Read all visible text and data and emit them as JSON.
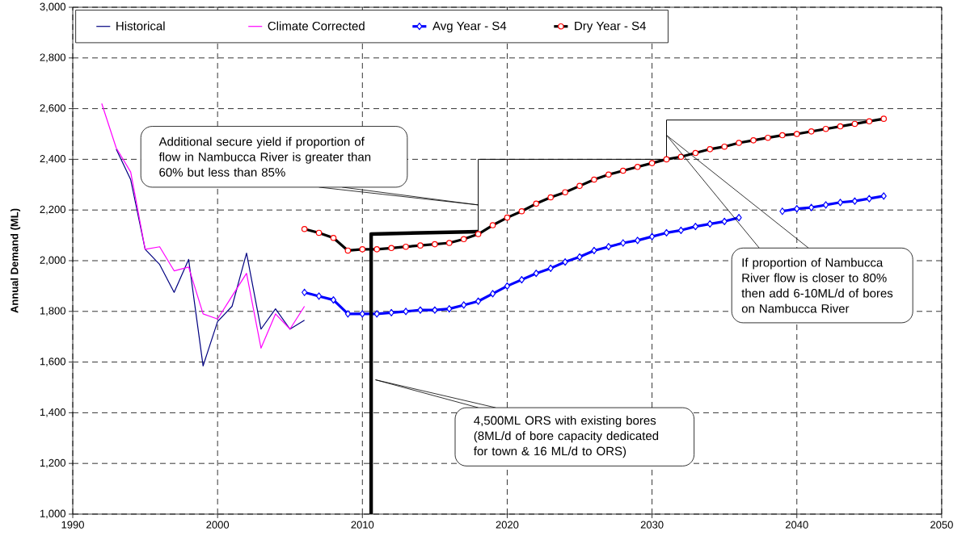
{
  "chart_data": {
    "type": "line",
    "ylabel": "Annual Demand (ML)",
    "xlim": [
      1990,
      2050
    ],
    "ylim": [
      1000,
      3000
    ],
    "xticks": [
      1990,
      2000,
      2010,
      2020,
      2030,
      2040,
      2050
    ],
    "yticks": [
      {
        "value": 1000,
        "label": "1,000"
      },
      {
        "value": 1200,
        "label": "1,200"
      },
      {
        "value": 1400,
        "label": "1,400"
      },
      {
        "value": 1600,
        "label": "1,600"
      },
      {
        "value": 1800,
        "label": "1,800"
      },
      {
        "value": 2000,
        "label": "2,000"
      },
      {
        "value": 2200,
        "label": "2,200"
      },
      {
        "value": 2400,
        "label": "2,400"
      },
      {
        "value": 2600,
        "label": "2,600"
      },
      {
        "value": 2800,
        "label": "2,800"
      },
      {
        "value": 3000,
        "label": "3,000"
      }
    ],
    "grid": true,
    "legend": "top",
    "series": [
      {
        "name": "Historical",
        "color": "#000080",
        "x": [
          1993,
          1994,
          1995,
          1996,
          1997,
          1998,
          1999,
          2000,
          2001,
          2002,
          2003,
          2004,
          2005,
          2006
        ],
        "values": [
          2440,
          2320,
          2045,
          1985,
          1875,
          2005,
          1585,
          1760,
          1820,
          2030,
          1730,
          1810,
          1730,
          1765
        ]
      },
      {
        "name": "Climate Corrected",
        "color": "#ff00ff",
        "x": [
          1992,
          1993,
          1994,
          1995,
          1996,
          1997,
          1998,
          1999,
          2000,
          2001,
          2002,
          2003,
          2004,
          2005,
          2006
        ],
        "values": [
          2620,
          2445,
          2350,
          2045,
          2055,
          1960,
          1975,
          1790,
          1770,
          1860,
          1950,
          1655,
          1790,
          1730,
          1820
        ]
      },
      {
        "name": "Avg Year - S4",
        "color": "#0000ff",
        "marker": "diamond",
        "x": [
          2006,
          2007,
          2008,
          2009,
          2010,
          2011,
          2012,
          2013,
          2014,
          2015,
          2016,
          2017,
          2018,
          2019,
          2020,
          2021,
          2022,
          2023,
          2024,
          2025,
          2026,
          2027,
          2028,
          2029,
          2030,
          2031,
          2032,
          2033,
          2034,
          2035,
          2036,
          2037,
          2038,
          2039,
          2040,
          2041,
          2042,
          2043,
          2044,
          2045,
          2046
        ],
        "values": [
          1875,
          1860,
          1845,
          1790,
          1790,
          1790,
          1795,
          1800,
          1805,
          1805,
          1810,
          1825,
          1840,
          1870,
          1900,
          1925,
          1950,
          1970,
          1995,
          2015,
          2040,
          2055,
          2070,
          2080,
          2095,
          2110,
          2120,
          2135,
          2145,
          2155,
          2170,
          null,
          null,
          2195,
          2205,
          2210,
          2220,
          2230,
          2235,
          2245,
          2255
        ]
      },
      {
        "name": "Dry Year - S4",
        "color": "#000000",
        "marker": "circle",
        "x": [
          2006,
          2007,
          2008,
          2009,
          2010,
          2011,
          2012,
          2013,
          2014,
          2015,
          2016,
          2017,
          2018,
          2019,
          2020,
          2021,
          2022,
          2023,
          2024,
          2025,
          2026,
          2027,
          2028,
          2029,
          2030,
          2031,
          2032,
          2033,
          2034,
          2035,
          2036,
          2037,
          2038,
          2039,
          2040,
          2041,
          2042,
          2043,
          2044,
          2045,
          2046
        ],
        "values": [
          2125,
          2110,
          2090,
          2040,
          2045,
          2045,
          2050,
          2055,
          2060,
          2065,
          2070,
          2085,
          2105,
          2140,
          2170,
          2195,
          2225,
          2250,
          2270,
          2295,
          2320,
          2340,
          2355,
          2370,
          2385,
          2400,
          2410,
          2425,
          2440,
          2450,
          2465,
          2475,
          2485,
          2495,
          2500,
          2510,
          2520,
          2530,
          2540,
          2550,
          2560
        ]
      },
      {
        "color": "#000000",
        "x": [
          2010.6,
          2010.6,
          2018
        ],
        "values": [
          1000,
          2105,
          2115
        ]
      },
      {
        "color": "#000000",
        "x": [
          2018,
          2018,
          2031,
          2031,
          2046
        ],
        "values": [
          2115,
          2400,
          2400,
          2555,
          2555
        ]
      }
    ],
    "annotations": [
      "Additional secure yield if proportion of flow in Nambucca River is greater than 60% but less than 85%",
      "If proportion of Nambucca River flow is closer to 80% then add 6-10ML/d of bores on Nambucca River",
      "4,500ML ORS with existing bores (8ML/d of bore capacity dedicated for town & 16 ML/d to ORS)"
    ]
  }
}
